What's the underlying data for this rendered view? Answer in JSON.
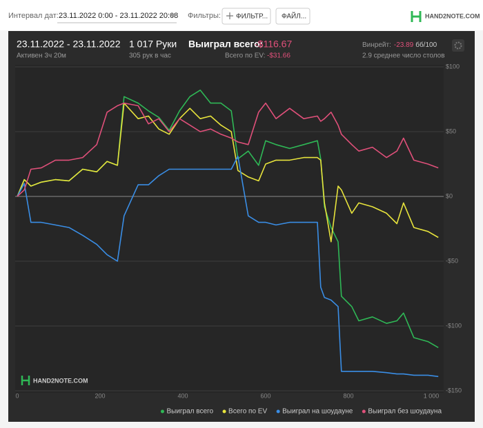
{
  "toolbar": {
    "date_label": "Интервал дат:",
    "date_range": "23.11.2022 0:00 - 23.11.2022 20:08",
    "filters_label": "Фильтры:",
    "filter_button": "ФИЛЬТР...",
    "file_button": "ФАЙЛ...",
    "logo": "HAND2NOTE.COM"
  },
  "stats": {
    "period": "23.11.2022 - 23.11.2022",
    "active": "Активен 3ч 20м",
    "hands": "1 017 Руки",
    "hands_per_hour": "305 рук в час",
    "won_label": "Выиграл всего:",
    "won_value": "-$116.67",
    "ev_label": "Всего по EV:",
    "ev_value": "-$31.66",
    "winrate_label": "Винрейт:",
    "winrate_value": "-23.89",
    "winrate_unit": "бб/100",
    "tables": "2.9 среднее число столов"
  },
  "chart_data": {
    "type": "line",
    "x": [
      0,
      17,
      33,
      58,
      92,
      125,
      158,
      192,
      217,
      242,
      258,
      292,
      317,
      342,
      367,
      392,
      417,
      442,
      467,
      492,
      517,
      533,
      558,
      583,
      600,
      625,
      658,
      692,
      725,
      733,
      742,
      758,
      775,
      783,
      808,
      825,
      858,
      892,
      917,
      933,
      958,
      992,
      1017
    ],
    "series": [
      {
        "name": "Выиграл всего",
        "color": "#2fb856",
        "values": [
          0,
          13,
          8,
          11,
          13,
          12,
          21,
          19,
          27,
          24,
          77,
          72,
          66,
          61,
          51,
          66,
          77,
          82,
          72,
          72,
          66,
          29,
          35,
          24,
          43,
          40,
          37,
          40,
          43,
          29,
          -8,
          -24,
          -35,
          -77,
          -85,
          -96,
          -93,
          -98,
          -96,
          -90,
          -109,
          -112,
          -116.67
        ]
      },
      {
        "name": "Всего по EV",
        "color": "#e8e43c",
        "values": [
          0,
          13,
          8,
          11,
          13,
          12,
          21,
          19,
          27,
          24,
          72,
          60,
          62,
          52,
          48,
          60,
          68,
          60,
          62,
          55,
          50,
          20,
          15,
          12,
          25,
          28,
          28,
          30,
          30,
          28,
          -5,
          -35,
          8,
          5,
          -13,
          -5,
          -8,
          -13,
          -21,
          -5,
          -24,
          -27,
          -31.66
        ]
      },
      {
        "name": "Выиграл на шоудауне",
        "color": "#3a8ee6",
        "values": [
          0,
          10,
          -20,
          -20,
          -22,
          -24,
          -30,
          -37,
          -45,
          -50,
          -15,
          9,
          9,
          16,
          21,
          21,
          21,
          21,
          21,
          21,
          21,
          31,
          -15,
          -20,
          -20,
          -22,
          -20,
          -20,
          -20,
          -70,
          -78,
          -80,
          -85,
          -135,
          -135,
          -135,
          -135,
          -136,
          -137,
          -137,
          -138,
          -138,
          -139
        ]
      },
      {
        "name": "Выиграл без шоудауна",
        "color": "#e0507a",
        "values": [
          0,
          5,
          21,
          22,
          28,
          28,
          30,
          40,
          65,
          70,
          72,
          70,
          56,
          60,
          50,
          60,
          55,
          50,
          52,
          48,
          45,
          42,
          40,
          65,
          72,
          60,
          68,
          60,
          62,
          58,
          60,
          65,
          55,
          48,
          40,
          35,
          38,
          30,
          35,
          45,
          28,
          25,
          22
        ]
      }
    ],
    "xlim": [
      0,
      1025
    ],
    "xticks": [
      0,
      200,
      400,
      600,
      800,
      {
        "value": 1000,
        "label": "1 000"
      }
    ],
    "ylim": [
      -150,
      100
    ],
    "yticks": [
      {
        "value": 100,
        "label": "$100"
      },
      {
        "value": 50,
        "label": "$50"
      },
      {
        "value": 0,
        "label": "$0"
      },
      {
        "value": -50,
        "label": "-$50"
      },
      {
        "value": -100,
        "label": "-$100"
      },
      {
        "value": -150,
        "label": "-$150"
      }
    ],
    "grid": true,
    "legend": "bottom-right"
  },
  "watermark": "HAND2NOTE.COM"
}
